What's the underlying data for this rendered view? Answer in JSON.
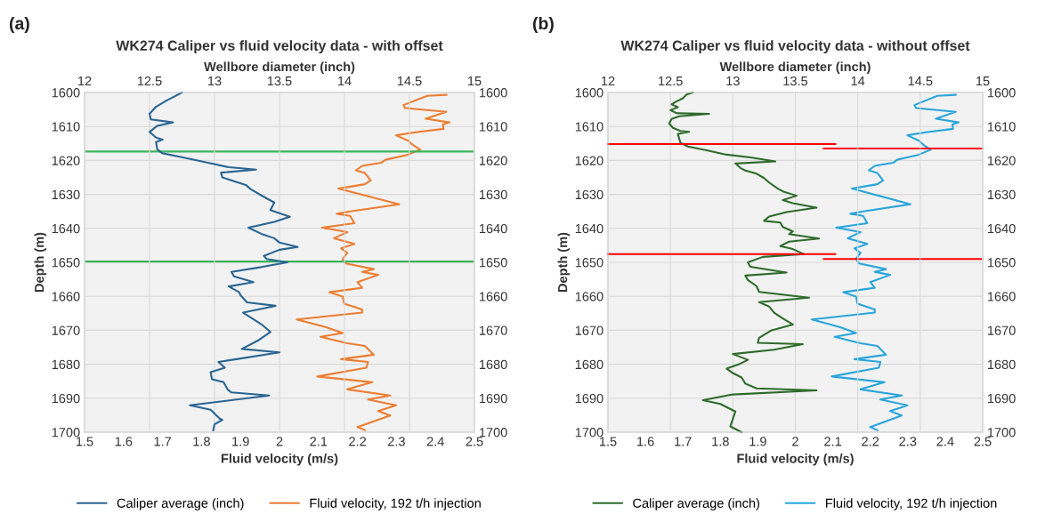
{
  "chart_data": [
    {
      "type": "line",
      "title": "WK274 Caliper vs fluid velocity data - with offset",
      "annotations": [
        "(a)"
      ],
      "xlabel": "Fluid velocity (m/s)",
      "x2label": "Wellbore diameter (inch)",
      "ylabel": "Depth (m)",
      "xlim": [
        1.5,
        2.5
      ],
      "xticks": [
        1.5,
        1.6,
        1.7,
        1.8,
        1.9,
        2,
        2.1,
        2.2,
        2.3,
        2.4,
        2.5
      ],
      "x2lim": [
        12,
        15
      ],
      "x2ticks": [
        12,
        12.5,
        13,
        13.5,
        14,
        14.5,
        15
      ],
      "ylim": [
        1700,
        1600
      ],
      "yticks": [
        1600,
        1610,
        1620,
        1630,
        1640,
        1650,
        1660,
        1670,
        1680,
        1690,
        1700
      ],
      "y2lim": [
        1700,
        1600
      ],
      "y2ticks": [
        1600,
        1610,
        1620,
        1630,
        1640,
        1650,
        1660,
        1670,
        1680,
        1690,
        1700
      ],
      "grid": true,
      "legend": "bottom",
      "ref_lines": [
        {
          "axis": "y",
          "value": 1617.4,
          "color": "#3cb45a"
        },
        {
          "axis": "y",
          "value": 1649.8,
          "color": "#3cb45a"
        }
      ],
      "series": [
        {
          "name": "Caliper average (inch)",
          "axis": "x2",
          "color": "#2a6592",
          "x": [
            12.75,
            12.67,
            12.63,
            12.55,
            12.5,
            12.51,
            12.68,
            12.56,
            12.5,
            12.55,
            12.6,
            12.55,
            12.56,
            12.6,
            12.74,
            12.95,
            13.11,
            13.32,
            13.05,
            13.06,
            13.24,
            13.28,
            13.36,
            13.46,
            13.43,
            13.58,
            13.46,
            13.26,
            13.36,
            13.46,
            13.5,
            13.64,
            13.5,
            13.38,
            13.4,
            13.56,
            13.36,
            13.13,
            13.15,
            13.3,
            13.11,
            13.19,
            13.2,
            13.25,
            13.47,
            13.22,
            13.36,
            13.43,
            13.34,
            13.21,
            13.5,
            13.17,
            13.03,
            13.08,
            12.97,
            12.98,
            13.07,
            13.1,
            13.13,
            13.42,
            12.81,
            12.97,
            13.04,
            13.06,
            13.0,
            12.99
          ],
          "values": [
            1600,
            1601.6,
            1602.4,
            1604.2,
            1606.3,
            1607.9,
            1608.8,
            1609.8,
            1611.6,
            1613.3,
            1613.9,
            1614.6,
            1616.8,
            1617.9,
            1619,
            1620.7,
            1622,
            1622.7,
            1623.6,
            1625,
            1627.2,
            1628.5,
            1630.3,
            1632.4,
            1634.6,
            1636.6,
            1638.1,
            1639.8,
            1641.6,
            1642.9,
            1644.2,
            1645.5,
            1646.3,
            1648.1,
            1649,
            1650,
            1651.4,
            1652.8,
            1654.1,
            1655.8,
            1657.1,
            1658.8,
            1659.7,
            1661.8,
            1662.8,
            1664.8,
            1668.2,
            1670.5,
            1672.9,
            1675.5,
            1676.5,
            1678.5,
            1679.3,
            1681,
            1682.3,
            1684.4,
            1685.3,
            1687.4,
            1688.3,
            1689.2,
            1692.1,
            1693.4,
            1696,
            1696.4,
            1697.7,
            1699.4
          ]
        },
        {
          "name": "Fluid velocity, 192 t/h injection",
          "color": "#ed7d31",
          "x": [
            2.428,
            2.379,
            2.318,
            2.322,
            2.428,
            2.375,
            2.436,
            2.419,
            2.421,
            2.349,
            2.299,
            2.33,
            2.345,
            2.361,
            2.33,
            2.272,
            2.261,
            2.212,
            2.196,
            2.219,
            2.234,
            2.219,
            2.151,
            2.307,
            2.181,
            2.147,
            2.181,
            2.192,
            2.109,
            2.174,
            2.14,
            2.192,
            2.158,
            2.174,
            2.162,
            2.17,
            2.242,
            2.212,
            2.253,
            2.2,
            2.212,
            2.128,
            2.162,
            2.166,
            2.212,
            2.212,
            2.044,
            2.09,
            2.12,
            2.162,
            2.105,
            2.174,
            2.219,
            2.242,
            2.158,
            2.227,
            2.223,
            2.097,
            2.238,
            2.174,
            2.284,
            2.227,
            2.299,
            2.253,
            2.284,
            2.2,
            2.219
          ],
          "values": [
            1600.7,
            1601,
            1603.7,
            1604.6,
            1605.7,
            1607.7,
            1608.8,
            1609.4,
            1610.7,
            1611.7,
            1612.6,
            1614.2,
            1615.7,
            1616.8,
            1618.3,
            1619.8,
            1620.7,
            1621.6,
            1622.9,
            1623.7,
            1625.9,
            1627,
            1628.3,
            1632.9,
            1635,
            1635.7,
            1636.3,
            1638.5,
            1639.8,
            1641.1,
            1642.9,
            1644.6,
            1645.9,
            1647.2,
            1649,
            1650.3,
            1652,
            1652.8,
            1653.7,
            1655.8,
            1657.5,
            1658.8,
            1660.1,
            1662.2,
            1663.9,
            1664.8,
            1666.8,
            1668.2,
            1669.1,
            1670.8,
            1671.9,
            1673.8,
            1674.6,
            1677.2,
            1678.5,
            1679.3,
            1681,
            1683.6,
            1685.3,
            1687.4,
            1689.2,
            1690.4,
            1692.1,
            1693.8,
            1695.1,
            1698.5,
            1699.4
          ]
        }
      ]
    },
    {
      "type": "line",
      "title": "WK274 Caliper vs fluid velocity data - without offset",
      "annotations": [
        "(b)"
      ],
      "xlabel": "Fluid velocity (m/s)",
      "x2label": "Wellbore diameter (inch)",
      "ylabel": "Depth (m)",
      "xlim": [
        1.5,
        2.5
      ],
      "xticks": [
        1.5,
        1.6,
        1.7,
        1.8,
        1.9,
        2,
        2.1,
        2.2,
        2.3,
        2.4,
        2.5
      ],
      "x2lim": [
        12,
        15
      ],
      "x2ticks": [
        12,
        12.5,
        13,
        13.5,
        14,
        14.5,
        15
      ],
      "ylim": [
        1700,
        1600
      ],
      "yticks": [
        1600,
        1610,
        1620,
        1630,
        1640,
        1650,
        1660,
        1670,
        1680,
        1690,
        1700
      ],
      "y2lim": [
        1700,
        1600
      ],
      "y2ticks": [
        1600,
        1610,
        1620,
        1630,
        1640,
        1650,
        1660,
        1670,
        1680,
        1690,
        1700
      ],
      "grid": true,
      "legend": "bottom",
      "series": [
        {
          "name": "Caliper average (inch)",
          "axis": "x2",
          "color": "#2e6b2a",
          "x": [
            12.68,
            12.63,
            12.6,
            12.55,
            12.51,
            12.56,
            12.5,
            12.55,
            12.81,
            12.57,
            12.51,
            12.49,
            12.52,
            12.58,
            12.65,
            12.56,
            12.57,
            12.58,
            12.64,
            12.79,
            12.95,
            13.14,
            13.34,
            13.02,
            13.06,
            13.1,
            13.19,
            13.25,
            13.29,
            13.36,
            13.4,
            13.51,
            13.4,
            13.48,
            13.67,
            13.43,
            13.29,
            13.25,
            13.38,
            13.4,
            13.48,
            13.45,
            13.69,
            13.45,
            13.38,
            13.48,
            13.57,
            13.24,
            13.12,
            13.14,
            13.43,
            13.1,
            13.12,
            13.19,
            13.21,
            13.61,
            13.21,
            13.29,
            13.33,
            13.4,
            13.48,
            13.31,
            13.21,
            13.2,
            13.56,
            13.33,
            13.0,
            13.12,
            13.05,
            12.95,
            13.0,
            13.07,
            13.1,
            13.19,
            13.67,
            13.0,
            12.76,
            12.9,
            13.02,
            13.0,
            12.98,
            13.07
          ],
          "values": [
            1600,
            1600.6,
            1601.7,
            1602.6,
            1603.5,
            1604.3,
            1605.2,
            1606.1,
            1606.3,
            1607,
            1607.8,
            1609.1,
            1610.4,
            1611.3,
            1611.6,
            1612.2,
            1613.5,
            1614.8,
            1615.9,
            1617,
            1618.3,
            1619.1,
            1620.3,
            1620.9,
            1622.2,
            1623,
            1623.9,
            1625.2,
            1626.5,
            1628.3,
            1629.1,
            1630.4,
            1631.7,
            1632.6,
            1633.9,
            1635.2,
            1636.5,
            1637.8,
            1638.3,
            1639.6,
            1640.9,
            1641.7,
            1643,
            1643.9,
            1645.2,
            1646.1,
            1647.6,
            1648.4,
            1650,
            1651.3,
            1653,
            1653.9,
            1655.2,
            1657,
            1658.7,
            1660.4,
            1661.7,
            1663,
            1664.8,
            1666.5,
            1668.3,
            1670,
            1672.2,
            1673.7,
            1674.1,
            1675.7,
            1677,
            1678.7,
            1680,
            1681.3,
            1682.6,
            1683.9,
            1685.7,
            1687.1,
            1687.7,
            1688.9,
            1690.6,
            1691.7,
            1693.9,
            1696.1,
            1698.3,
            1700
          ]
        },
        {
          "name": "Fluid velocity, 192 t/h injection",
          "color": "#29a5dc",
          "x": [
            2.428,
            2.379,
            2.318,
            2.322,
            2.428,
            2.375,
            2.436,
            2.419,
            2.421,
            2.349,
            2.299,
            2.33,
            2.345,
            2.361,
            2.33,
            2.272,
            2.261,
            2.212,
            2.196,
            2.219,
            2.234,
            2.219,
            2.151,
            2.307,
            2.181,
            2.147,
            2.181,
            2.192,
            2.109,
            2.174,
            2.14,
            2.192,
            2.158,
            2.174,
            2.162,
            2.17,
            2.242,
            2.212,
            2.253,
            2.2,
            2.212,
            2.128,
            2.162,
            2.166,
            2.212,
            2.212,
            2.044,
            2.09,
            2.12,
            2.162,
            2.105,
            2.174,
            2.219,
            2.242,
            2.158,
            2.227,
            2.223,
            2.097,
            2.238,
            2.174,
            2.284,
            2.227,
            2.299,
            2.253,
            2.284,
            2.2,
            2.219
          ],
          "values": [
            1600.7,
            1601,
            1603.7,
            1604.6,
            1605.7,
            1607.7,
            1608.8,
            1609.4,
            1610.7,
            1611.7,
            1612.6,
            1614.2,
            1615.7,
            1616.8,
            1618.3,
            1619.8,
            1620.7,
            1621.6,
            1622.9,
            1623.7,
            1625.9,
            1627,
            1628.3,
            1632.9,
            1635,
            1635.7,
            1636.3,
            1638.5,
            1639.8,
            1641.1,
            1642.9,
            1644.6,
            1645.9,
            1647.2,
            1649,
            1650.3,
            1652,
            1652.8,
            1653.7,
            1655.8,
            1657.5,
            1658.8,
            1660.1,
            1662.2,
            1663.9,
            1664.8,
            1666.8,
            1668.2,
            1669.1,
            1670.8,
            1671.9,
            1673.8,
            1674.6,
            1677.2,
            1678.5,
            1679.3,
            1681,
            1683.6,
            1685.3,
            1687.4,
            1689.2,
            1690.4,
            1692.1,
            1693.8,
            1695.1,
            1698.5,
            1699.4
          ]
        },
        {
          "axis": "x2",
          "color": "#ff0000",
          "x": [
            12,
            13.82
          ],
          "values": [
            1615.2,
            1615.2
          ]
        },
        {
          "color": "#ff0000",
          "x": [
            2.076,
            2.5
          ],
          "values": [
            1616.5,
            1616.5
          ]
        },
        {
          "axis": "x2",
          "color": "#ff0000",
          "x": [
            12,
            13.82
          ],
          "values": [
            1647.6,
            1647.6
          ]
        },
        {
          "color": "#ff0000",
          "x": [
            2.076,
            2.5
          ],
          "values": [
            1649,
            1649
          ]
        }
      ]
    }
  ]
}
